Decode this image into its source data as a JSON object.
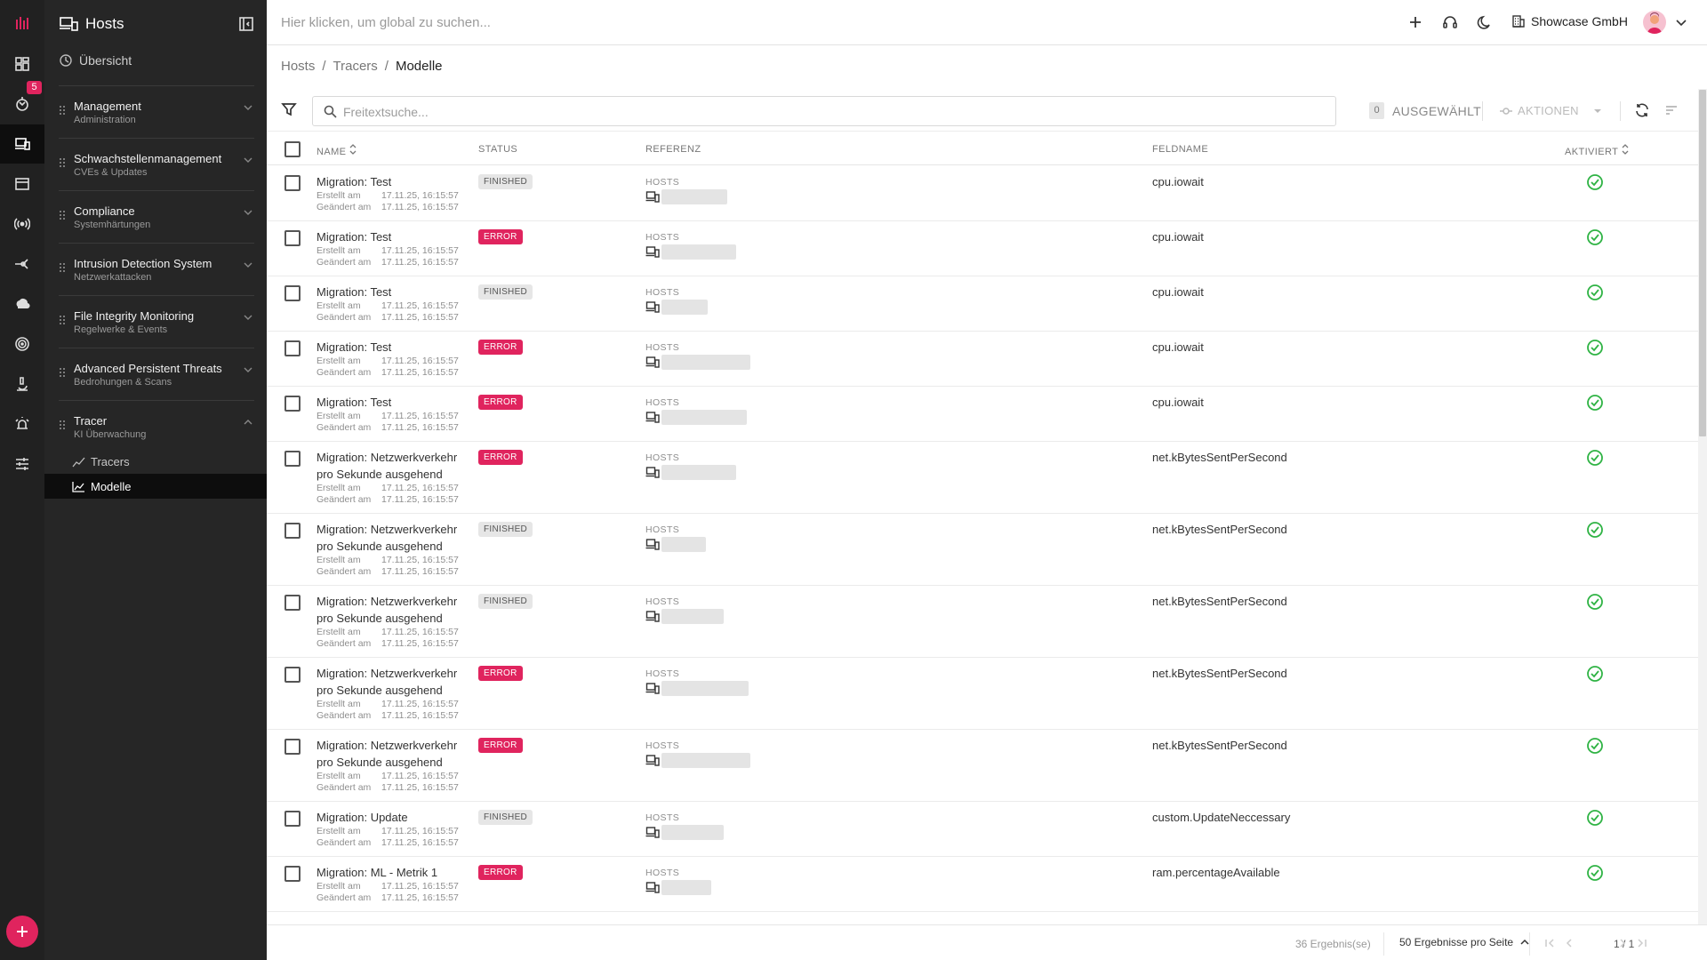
{
  "rail": {
    "badge_count": "5",
    "icons": [
      "logo-icon",
      "dashboard-icon",
      "vulnerability-icon",
      "hosts-icon",
      "window-icon",
      "broadcast-icon",
      "network-icon",
      "cloud-icon",
      "target-icon",
      "microscope-icon",
      "alarm-icon",
      "settings-sliders-icon"
    ]
  },
  "sidebar": {
    "title": "Hosts",
    "overview": "Übersicht",
    "groups": [
      {
        "title": "Management",
        "subtitle": "Administration"
      },
      {
        "title": "Schwachstellenmanagement",
        "subtitle": "CVEs & Updates"
      },
      {
        "title": "Compliance",
        "subtitle": "Systemhärtungen"
      },
      {
        "title": "Intrusion Detection System",
        "subtitle": "Netzwerkattacken"
      },
      {
        "title": "File Integrity Monitoring",
        "subtitle": "Regelwerke & Events"
      },
      {
        "title": "Advanced Persistent Threats",
        "subtitle": "Bedrohungen & Scans"
      },
      {
        "title": "Tracer",
        "subtitle": "KI Überwachung"
      }
    ],
    "tracer_items": [
      {
        "label": "Tracers"
      },
      {
        "label": "Modelle"
      }
    ]
  },
  "topbar": {
    "search_placeholder": "Hier klicken, um global zu suchen...",
    "company": "Showcase GmbH"
  },
  "breadcrumb": {
    "items": [
      "Hosts",
      "Tracers",
      "Modelle"
    ]
  },
  "toolbar": {
    "search_placeholder": "Freitextsuche...",
    "selected_count": "0",
    "selected_label": "AUSGEWÄHLT",
    "actions_label": "AKTIONEN"
  },
  "table": {
    "headers": {
      "name": "NAME",
      "status": "STATUS",
      "reference": "REFERENZ",
      "fieldname": "FELDNAME",
      "activated": "AKTIVIERT"
    },
    "created_label": "Erstellt am",
    "changed_label": "Geändert am",
    "reference_type": "HOSTS",
    "rows": [
      {
        "name": "Migration: Test",
        "created": "17.11.25, 16:15:57",
        "changed": "17.11.25, 16:15:57",
        "status": "FINISHED",
        "field": "cpu.iowait"
      },
      {
        "name": "Migration: Test",
        "created": "17.11.25, 16:15:57",
        "changed": "17.11.25, 16:15:57",
        "status": "ERROR",
        "field": "cpu.iowait"
      },
      {
        "name": "Migration: Test",
        "created": "17.11.25, 16:15:57",
        "changed": "17.11.25, 16:15:57",
        "status": "FINISHED",
        "field": "cpu.iowait"
      },
      {
        "name": "Migration: Test",
        "created": "17.11.25, 16:15:57",
        "changed": "17.11.25, 16:15:57",
        "status": "ERROR",
        "field": "cpu.iowait"
      },
      {
        "name": "Migration: Test",
        "created": "17.11.25, 16:15:57",
        "changed": "17.11.25, 16:15:57",
        "status": "ERROR",
        "field": "cpu.iowait"
      },
      {
        "name": "Migration: Netzwerkverkehr pro Sekunde ausgehend",
        "created": "17.11.25, 16:15:57",
        "changed": "17.11.25, 16:15:57",
        "status": "ERROR",
        "field": "net.kBytesSentPerSecond"
      },
      {
        "name": "Migration: Netzwerkverkehr pro Sekunde ausgehend",
        "created": "17.11.25, 16:15:57",
        "changed": "17.11.25, 16:15:57",
        "status": "FINISHED",
        "field": "net.kBytesSentPerSecond"
      },
      {
        "name": "Migration: Netzwerkverkehr pro Sekunde ausgehend",
        "created": "17.11.25, 16:15:57",
        "changed": "17.11.25, 16:15:57",
        "status": "FINISHED",
        "field": "net.kBytesSentPerSecond"
      },
      {
        "name": "Migration: Netzwerkverkehr pro Sekunde ausgehend",
        "created": "17.11.25, 16:15:57",
        "changed": "17.11.25, 16:15:57",
        "status": "ERROR",
        "field": "net.kBytesSentPerSecond"
      },
      {
        "name": "Migration: Netzwerkverkehr pro Sekunde ausgehend",
        "created": "17.11.25, 16:15:57",
        "changed": "17.11.25, 16:15:57",
        "status": "ERROR",
        "field": "net.kBytesSentPerSecond"
      },
      {
        "name": "Migration: Update",
        "created": "17.11.25, 16:15:57",
        "changed": "17.11.25, 16:15:57",
        "status": "FINISHED",
        "field": "custom.UpdateNeccessary"
      },
      {
        "name": "Migration: ML - Metrik 1",
        "created": "17.11.25, 16:15:57",
        "changed": "17.11.25, 16:15:57",
        "status": "ERROR",
        "field": "ram.percentageAvailable"
      }
    ]
  },
  "footer": {
    "results": "36 Ergebnis(se)",
    "per_page": "50 Ergebnisse pro Seite",
    "page": "1 / 1"
  },
  "colors": {
    "accent": "#e0245e",
    "sidebar_bg": "#262626",
    "rail_bg": "#212121",
    "success": "#2fb344"
  }
}
